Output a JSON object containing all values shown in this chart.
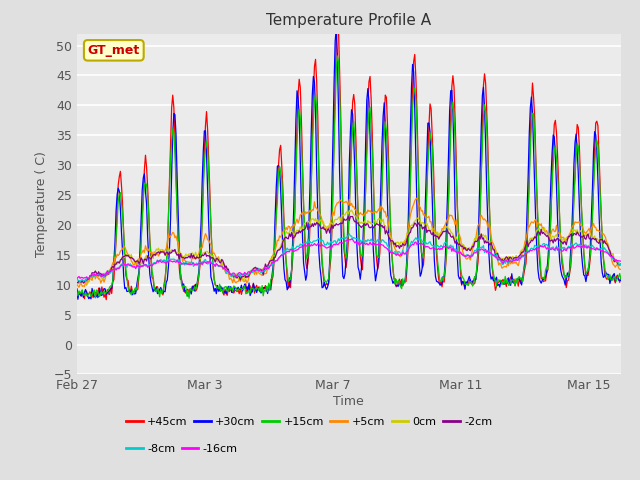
{
  "title": "Temperature Profile A",
  "xlabel": "Time",
  "ylabel": "Temperature (C)",
  "ylim": [
    -5,
    52
  ],
  "yticks": [
    -5,
    0,
    5,
    10,
    15,
    20,
    25,
    30,
    35,
    40,
    45,
    50
  ],
  "xtick_labels": [
    "Feb 27",
    "Mar 3",
    "Mar 7",
    "Mar 11",
    "Mar 15"
  ],
  "xtick_positions": [
    0,
    4,
    8,
    12,
    16
  ],
  "xlim": [
    0,
    17
  ],
  "series_labels": [
    "+45cm",
    "+30cm",
    "+15cm",
    "+5cm",
    "0cm",
    "-2cm",
    "-8cm",
    "-16cm"
  ],
  "series_colors": [
    "#ff0000",
    "#0000ff",
    "#00cc00",
    "#ff8800",
    "#cccc00",
    "#880088",
    "#00cccc",
    "#ff00ff"
  ],
  "legend_label": "GT_met",
  "legend_bg": "#ffffcc",
  "legend_border": "#bbaa00",
  "legend_text_color": "#cc0000",
  "fig_bg": "#e0e0e0",
  "plot_bg": "#ebebeb",
  "grid_color": "#ffffff",
  "title_fontsize": 11,
  "label_fontsize": 9,
  "tick_fontsize": 9,
  "n_points": 500,
  "seed": 7,
  "days": 17
}
